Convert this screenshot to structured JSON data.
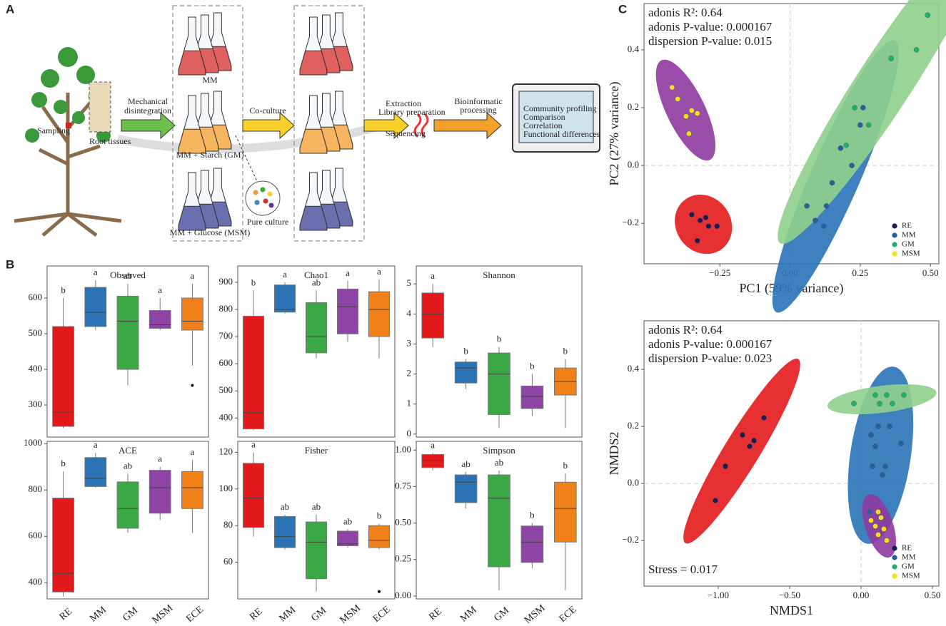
{
  "diagram": {
    "panel_a": "A",
    "panel_b": "B",
    "panel_c": "C",
    "sampling": "Sampling",
    "root_tissues": "Root tissues",
    "mechanical_1": "Mechanical",
    "mechanical_2": "disintegration",
    "mm": "MM",
    "gm": "MM + Starch (GM)",
    "msm": "MM + Glucose (MSM)",
    "pure_culture": "Pure culture",
    "co_culture": "Co-culture",
    "extraction": "Extraction",
    "library": "Library preparation",
    "sequencing": "Sequencing",
    "bioinformatic_1": "Bioinformatic",
    "bioinformatic_2": "processing",
    "screen": [
      "Community profiling",
      "Comparison",
      "Correlation",
      "Functional differences"
    ]
  },
  "chart_data": [
    {
      "type": "box",
      "title": "Observed",
      "colors": [
        "#e31a1c",
        "#2b73b5",
        "#3aa845",
        "#8e44a4",
        "#f28018"
      ],
      "ylim": [
        210,
        690
      ],
      "yticks": [
        300,
        400,
        500,
        600
      ],
      "letters": [
        "b",
        "a",
        "ab",
        "a",
        "a"
      ],
      "boxes": [
        {
          "min": 235,
          "q1": 240,
          "median": 280,
          "q3": 520,
          "max": 600,
          "outliers": []
        },
        {
          "min": 510,
          "q1": 520,
          "median": 560,
          "q3": 630,
          "max": 650,
          "outliers": []
        },
        {
          "min": 355,
          "q1": 400,
          "median": 535,
          "q3": 605,
          "max": 640,
          "outliers": []
        },
        {
          "min": 510,
          "q1": 515,
          "median": 525,
          "q3": 565,
          "max": 600,
          "outliers": []
        },
        {
          "min": 410,
          "q1": 510,
          "median": 535,
          "q3": 600,
          "max": 640,
          "outliers": [
            355
          ]
        }
      ]
    },
    {
      "type": "box",
      "title": "Chao1",
      "colors": [
        "#e31a1c",
        "#2b73b5",
        "#3aa845",
        "#8e44a4",
        "#f28018"
      ],
      "ylim": [
        330,
        960
      ],
      "yticks": [
        400,
        500,
        600,
        700,
        800,
        900
      ],
      "letters": [
        "b",
        "a",
        "ab",
        "a",
        "a"
      ],
      "boxes": [
        {
          "min": 355,
          "q1": 360,
          "median": 420,
          "q3": 775,
          "max": 870,
          "outliers": []
        },
        {
          "min": 785,
          "q1": 790,
          "median": 800,
          "q3": 890,
          "max": 900,
          "outliers": []
        },
        {
          "min": 620,
          "q1": 640,
          "median": 700,
          "q3": 825,
          "max": 870,
          "outliers": []
        },
        {
          "min": 680,
          "q1": 710,
          "median": 810,
          "q3": 875,
          "max": 905,
          "outliers": []
        },
        {
          "min": 620,
          "q1": 700,
          "median": 800,
          "q3": 865,
          "max": 910,
          "outliers": []
        }
      ]
    },
    {
      "type": "box",
      "title": "Shannon",
      "colors": [
        "#e31a1c",
        "#2b73b5",
        "#3aa845",
        "#8e44a4",
        "#f28018"
      ],
      "ylim": [
        -0.1,
        5.6
      ],
      "yticks": [
        0,
        1,
        2,
        3,
        4,
        5
      ],
      "letters": [
        "a",
        "b",
        "b",
        "b",
        "b"
      ],
      "boxes": [
        {
          "min": 2.9,
          "q1": 3.2,
          "median": 4.0,
          "q3": 4.7,
          "max": 5.0,
          "outliers": []
        },
        {
          "min": 1.5,
          "q1": 1.7,
          "median": 2.2,
          "q3": 2.4,
          "max": 2.5,
          "outliers": []
        },
        {
          "min": 0.2,
          "q1": 0.65,
          "median": 2.0,
          "q3": 2.7,
          "max": 2.9,
          "outliers": []
        },
        {
          "min": 0.6,
          "q1": 0.85,
          "median": 1.25,
          "q3": 1.6,
          "max": 2.0,
          "outliers": []
        },
        {
          "min": 0.2,
          "q1": 1.3,
          "median": 1.75,
          "q3": 2.2,
          "max": 2.5,
          "outliers": []
        }
      ]
    },
    {
      "type": "box",
      "title": "ACE",
      "colors": [
        "#e31a1c",
        "#2b73b5",
        "#3aa845",
        "#8e44a4",
        "#f28018"
      ],
      "categories": [
        "RE",
        "MM",
        "GM",
        "MSM",
        "ECE"
      ],
      "ylim": [
        330,
        1010
      ],
      "yticks": [
        400,
        600,
        800,
        1000
      ],
      "letters": [
        "b",
        "a",
        "ab",
        "a",
        "a"
      ],
      "boxes": [
        {
          "min": 340,
          "q1": 360,
          "median": 440,
          "q3": 765,
          "max": 880,
          "outliers": []
        },
        {
          "min": 810,
          "q1": 815,
          "median": 850,
          "q3": 940,
          "max": 960,
          "outliers": []
        },
        {
          "min": 615,
          "q1": 635,
          "median": 720,
          "q3": 835,
          "max": 870,
          "outliers": []
        },
        {
          "min": 670,
          "q1": 700,
          "median": 810,
          "q3": 885,
          "max": 900,
          "outliers": []
        },
        {
          "min": 615,
          "q1": 720,
          "median": 810,
          "q3": 880,
          "max": 930,
          "outliers": []
        }
      ]
    },
    {
      "type": "box",
      "title": "Fisher",
      "colors": [
        "#e31a1c",
        "#2b73b5",
        "#3aa845",
        "#8e44a4",
        "#f28018"
      ],
      "categories": [
        "RE",
        "MM",
        "GM",
        "MSM",
        "ECE"
      ],
      "ylim": [
        40,
        126
      ],
      "yticks": [
        60,
        80,
        100,
        120
      ],
      "letters": [
        "a",
        "ab",
        "ab",
        "ab",
        "b"
      ],
      "boxes": [
        {
          "min": 74,
          "q1": 79,
          "median": 95,
          "q3": 114,
          "max": 120,
          "outliers": []
        },
        {
          "min": 67,
          "q1": 68,
          "median": 74,
          "q3": 85,
          "max": 86,
          "outliers": []
        },
        {
          "min": 44,
          "q1": 51,
          "median": 71,
          "q3": 82,
          "max": 86,
          "outliers": []
        },
        {
          "min": 68,
          "q1": 69,
          "median": 70,
          "q3": 77,
          "max": 78,
          "outliers": []
        },
        {
          "min": 67,
          "q1": 68,
          "median": 72,
          "q3": 80,
          "max": 81,
          "outliers": [
            44
          ]
        }
      ]
    },
    {
      "type": "box",
      "title": "Simpson",
      "colors": [
        "#e31a1c",
        "#2b73b5",
        "#3aa845",
        "#8e44a4",
        "#f28018"
      ],
      "categories": [
        "RE",
        "MM",
        "GM",
        "MSM",
        "ECE"
      ],
      "ylim": [
        -0.02,
        1.06
      ],
      "yticks": [
        {
          "value": 0,
          "label": "0.00"
        },
        {
          "value": 0.25,
          "label": "0.25"
        },
        {
          "value": 0.5,
          "label": "0.50"
        },
        {
          "value": 0.75,
          "label": "0.75"
        },
        {
          "value": 1,
          "label": "1.00"
        }
      ],
      "letters": [
        "a",
        "ab",
        "ab",
        "b",
        "b"
      ],
      "boxes": [
        {
          "min": 0.86,
          "q1": 0.88,
          "median": 0.93,
          "q3": 0.97,
          "max": 0.98,
          "outliers": []
        },
        {
          "min": 0.6,
          "q1": 0.64,
          "median": 0.78,
          "q3": 0.83,
          "max": 0.85,
          "outliers": []
        },
        {
          "min": 0.04,
          "q1": 0.2,
          "median": 0.67,
          "q3": 0.83,
          "max": 0.86,
          "outliers": []
        },
        {
          "min": 0.19,
          "q1": 0.23,
          "median": 0.37,
          "q3": 0.48,
          "max": 0.5,
          "outliers": []
        },
        {
          "min": 0.04,
          "q1": 0.37,
          "median": 0.6,
          "q3": 0.78,
          "max": 0.84,
          "outliers": []
        }
      ]
    },
    {
      "type": "scatter",
      "xlabel": "PC1 (59% variance)",
      "ylabel": "PC2 (27% variance)",
      "annotations": [
        "adonis R²: 0.64",
        "adonis P-value: 0.000167",
        "dispersion P-value: 0.015"
      ],
      "xlim": [
        -0.52,
        0.53
      ],
      "ylim": [
        -0.34,
        0.56
      ],
      "xticks": [
        {
          "value": -0.25,
          "label": "−0.25"
        },
        {
          "value": 0,
          "label": "0.00"
        },
        {
          "value": 0.25,
          "label": "0.25"
        },
        {
          "value": 0.5,
          "label": "0.50"
        }
      ],
      "yticks": [
        {
          "value": -0.2,
          "label": "−0.2"
        },
        {
          "value": 0,
          "label": "0.0"
        },
        {
          "value": 0.2,
          "label": "0.2"
        },
        {
          "value": 0.4,
          "label": "0.4"
        }
      ],
      "legend": "bottom-right",
      "series": [
        {
          "name": "RE",
          "color": "#1b1b4d",
          "ellipse_color": "#e31a1c",
          "x": [
            -0.35,
            -0.32,
            -0.3,
            -0.29,
            -0.33,
            -0.26
          ],
          "y": [
            -0.17,
            -0.19,
            -0.18,
            -0.21,
            -0.26,
            -0.21
          ]
        },
        {
          "name": "MM",
          "color": "#245f9e",
          "ellipse_color": "#2a73b8",
          "x": [
            0.06,
            0.09,
            0.12,
            0.13,
            0.15,
            0.18,
            0.22,
            0.25,
            0.26
          ],
          "y": [
            -0.14,
            -0.19,
            -0.21,
            -0.14,
            -0.06,
            0.06,
            0.0,
            0.14,
            0.2
          ]
        },
        {
          "name": "GM",
          "color": "#1fb06e",
          "ellipse_color": "#8fd08c",
          "x": [
            0.2,
            0.23,
            0.28,
            0.36,
            0.45,
            0.49
          ],
          "y": [
            0.07,
            0.2,
            0.14,
            0.37,
            0.4,
            0.52
          ]
        },
        {
          "name": "MSM",
          "color": "#f5e11a",
          "ellipse_color": "#8e3a9e",
          "x": [
            -0.42,
            -0.4,
            -0.37,
            -0.35,
            -0.33,
            -0.36
          ],
          "y": [
            0.27,
            0.23,
            0.17,
            0.19,
            0.18,
            0.11
          ]
        }
      ]
    },
    {
      "type": "scatter",
      "xlabel": "NMDS1",
      "ylabel": "NMDS2",
      "annotations": [
        "adonis R²: 0.64",
        "adonis P-value: 0.000167",
        "dispersion P-value: 0.023"
      ],
      "footnote": "Stress = 0.017",
      "xlim": [
        -1.52,
        0.545
      ],
      "ylim": [
        -0.36,
        0.57
      ],
      "xticks": [
        {
          "value": -1,
          "label": "−1.00"
        },
        {
          "value": -0.5,
          "label": "−0.50"
        },
        {
          "value": 0,
          "label": "0.00"
        },
        {
          "value": 0.5,
          "label": "0.50"
        }
      ],
      "yticks": [
        {
          "value": -0.2,
          "label": "−0.2"
        },
        {
          "value": 0,
          "label": "0.0"
        },
        {
          "value": 0.2,
          "label": "0.2"
        },
        {
          "value": 0.4,
          "label": "0.4"
        }
      ],
      "legend": "bottom-right",
      "series": [
        {
          "name": "RE",
          "color": "#1b1b4d",
          "ellipse_color": "#e31a1c",
          "x": [
            -1.02,
            -0.95,
            -0.83,
            -0.78,
            -0.75,
            -0.68
          ],
          "y": [
            -0.06,
            0.06,
            0.17,
            0.13,
            0.15,
            0.23
          ]
        },
        {
          "name": "MM",
          "color": "#245f9e",
          "ellipse_color": "#2a73b8",
          "x": [
            0.06,
            0.08,
            0.1,
            0.12,
            0.15,
            0.17,
            0.2,
            0.28,
            0.07
          ],
          "y": [
            -0.1,
            0.06,
            0.13,
            0.2,
            0.03,
            0.06,
            0.2,
            0.14,
            0.17
          ]
        },
        {
          "name": "GM",
          "color": "#1fb06e",
          "ellipse_color": "#8fd08c",
          "x": [
            -0.05,
            0.1,
            0.13,
            0.18,
            0.22,
            0.3
          ],
          "y": [
            0.28,
            0.31,
            0.28,
            0.31,
            0.28,
            0.31
          ]
        },
        {
          "name": "MSM",
          "color": "#f5e11a",
          "ellipse_color": "#8e3a9e",
          "x": [
            0.07,
            0.1,
            0.12,
            0.14,
            0.16,
            0.18,
            0.12
          ],
          "y": [
            -0.13,
            -0.15,
            -0.18,
            -0.12,
            -0.16,
            -0.2,
            -0.1
          ]
        }
      ]
    }
  ]
}
